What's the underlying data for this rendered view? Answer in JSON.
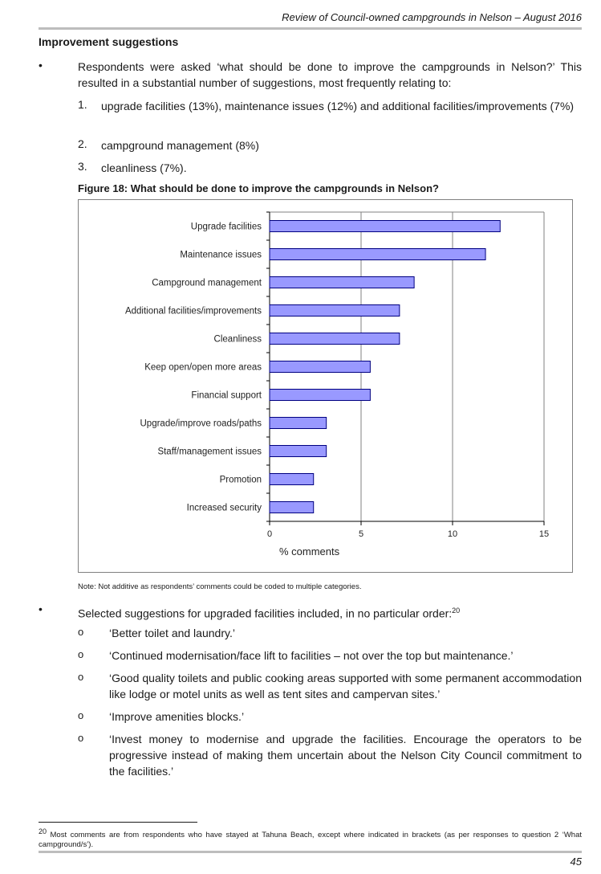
{
  "header": {
    "title": "Review of Council-owned campgrounds in Nelson – August 2016"
  },
  "section": {
    "title": "Improvement suggestions"
  },
  "bullet_glyph": "•",
  "circle_glyph": "o",
  "intro": {
    "text": "Respondents were asked ‘what should be done to improve the campgrounds in Nelson?’ This resulted in a substantial number of suggestions, most frequently relating to:",
    "items": [
      {
        "num": "1.",
        "text": "upgrade facilities (13%), maintenance issues (12%) and additional facilities/improvements (7%)"
      },
      {
        "num": "2.",
        "text": "campground management (8%)"
      },
      {
        "num": "3.",
        "text": "cleanliness (7%)."
      }
    ]
  },
  "figure": {
    "title": "Figure 18: What should be done to improve the campgrounds in Nelson?",
    "note": "Note: Not additive as respondents’ comments could be coded to multiple categories."
  },
  "chart_data": {
    "type": "bar",
    "orientation": "horizontal",
    "categories": [
      "Upgrade facilities",
      "Maintenance issues",
      "Campground management",
      "Additional facilities/improvements",
      "Cleanliness",
      "Keep open/open more areas",
      "Financial support",
      "Upgrade/improve roads/paths",
      "Staff/management issues",
      "Promotion",
      "Increased security"
    ],
    "values": [
      12.6,
      11.8,
      7.9,
      7.1,
      7.1,
      5.5,
      5.5,
      3.1,
      3.1,
      2.4,
      2.4
    ],
    "xlabel": "% comments",
    "ticks": [
      "0",
      "5",
      "10",
      "15"
    ],
    "xlim": [
      0,
      15
    ],
    "grid": true,
    "bar_color": "#9999ff",
    "bar_border": "#000080"
  },
  "upgrades": {
    "lead": "Selected suggestions for upgraded facilities included, in no particular order:",
    "footnote_ref": "20",
    "quotes": [
      "‘Better toilet and laundry.’",
      "‘Continued modernisation/face lift to facilities – not over the top but maintenance.’",
      "‘Good quality toilets and public cooking areas supported with some permanent accommodation like lodge or motel units as well as tent sites and campervan sites.’",
      "‘Improve amenities blocks.’",
      "‘Invest money to modernise and upgrade the facilities.  Encourage the operators to be progressive instead of making them uncertain about the Nelson City Council commitment to the facilities.’"
    ]
  },
  "footnote": {
    "num": "20",
    "text": " Most comments are from respondents who have stayed at Tahuna Beach, except where indicated in brackets (as per responses to question 2 ‘What campground/s’)."
  },
  "page_number": "45"
}
